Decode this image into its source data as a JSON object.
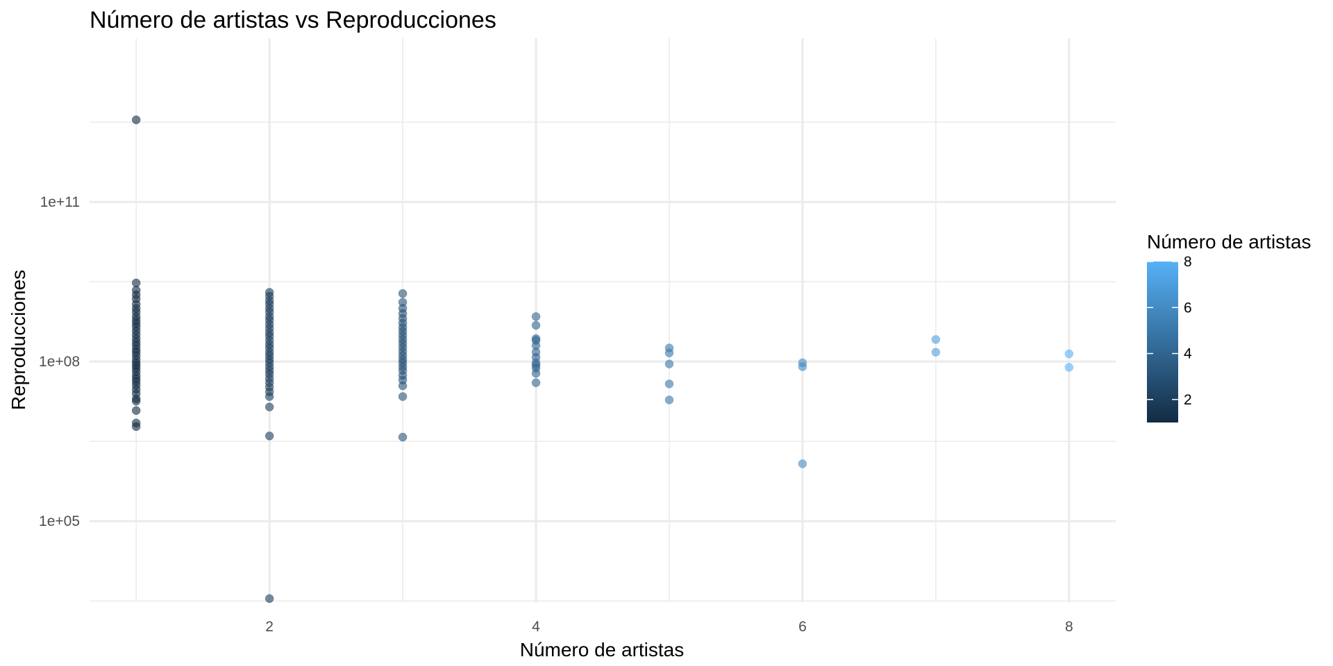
{
  "chart_data": {
    "type": "scatter",
    "title": "Número de artistas vs Reproducciones",
    "xlabel": "Número de artistas",
    "ylabel": "Reproducciones",
    "x_scale": "linear",
    "y_scale": "log10",
    "xlim": [
      0.65,
      8.35
    ],
    "ylim": [
      3000,
      120000000000000
    ],
    "x_ticks": [
      2,
      4,
      6,
      8
    ],
    "x_tick_labels": [
      "2",
      "4",
      "6",
      "8"
    ],
    "y_ticks": [
      100000,
      100000000,
      100000000000
    ],
    "y_tick_labels": [
      "1e+05",
      "1e+08",
      "1e+11"
    ],
    "grid": true,
    "legend": {
      "title": "Número de artistas",
      "type": "colorbar",
      "placement": "right",
      "range": [
        1,
        8
      ],
      "ticks": [
        2,
        4,
        6,
        8
      ],
      "tick_labels": [
        "2",
        "4",
        "6",
        "8"
      ],
      "low_color": "#132B43",
      "high_color": "#56B1F7"
    },
    "point_opacity": 0.6,
    "series": [
      {
        "x": 1,
        "y": [
          3500000000000,
          3000000000,
          2200000000,
          1800000000,
          1500000000,
          1200000000,
          1000000000,
          850000000,
          700000000,
          600000000,
          520000000,
          450000000,
          380000000,
          320000000,
          270000000,
          230000000,
          200000000,
          170000000,
          150000000,
          130000000,
          110000000,
          95000000,
          85000000,
          75000000,
          65000000,
          55000000,
          48000000,
          42000000,
          36000000,
          30000000,
          25000000,
          20000000,
          18000000,
          12000000,
          7000000,
          6000000
        ]
      },
      {
        "x": 2,
        "y": [
          2000000000,
          1700000000,
          1400000000,
          1200000000,
          1000000000,
          850000000,
          700000000,
          600000000,
          500000000,
          420000000,
          350000000,
          300000000,
          250000000,
          210000000,
          180000000,
          150000000,
          130000000,
          110000000,
          95000000,
          80000000,
          68000000,
          58000000,
          48000000,
          40000000,
          33000000,
          27000000,
          22000000,
          14000000,
          4000000,
          3500
        ]
      },
      {
        "x": 3,
        "y": [
          1900000000,
          1300000000,
          1000000000,
          800000000,
          650000000,
          530000000,
          440000000,
          370000000,
          310000000,
          260000000,
          220000000,
          185000000,
          155000000,
          130000000,
          110000000,
          95000000,
          80000000,
          68000000,
          55000000,
          45000000,
          35000000,
          22000000,
          3800000
        ]
      },
      {
        "x": 4,
        "y": [
          700000000,
          480000000,
          270000000,
          250000000,
          200000000,
          150000000,
          120000000,
          95000000,
          85000000,
          75000000,
          60000000,
          40000000
        ]
      },
      {
        "x": 5,
        "y": [
          180000000,
          145000000,
          90000000,
          38000000,
          19000000
        ]
      },
      {
        "x": 6,
        "y": [
          95000000,
          80000000,
          1200000
        ]
      },
      {
        "x": 7,
        "y": [
          260000000,
          150000000
        ]
      },
      {
        "x": 8,
        "y": [
          140000000,
          78000000
        ]
      }
    ]
  }
}
